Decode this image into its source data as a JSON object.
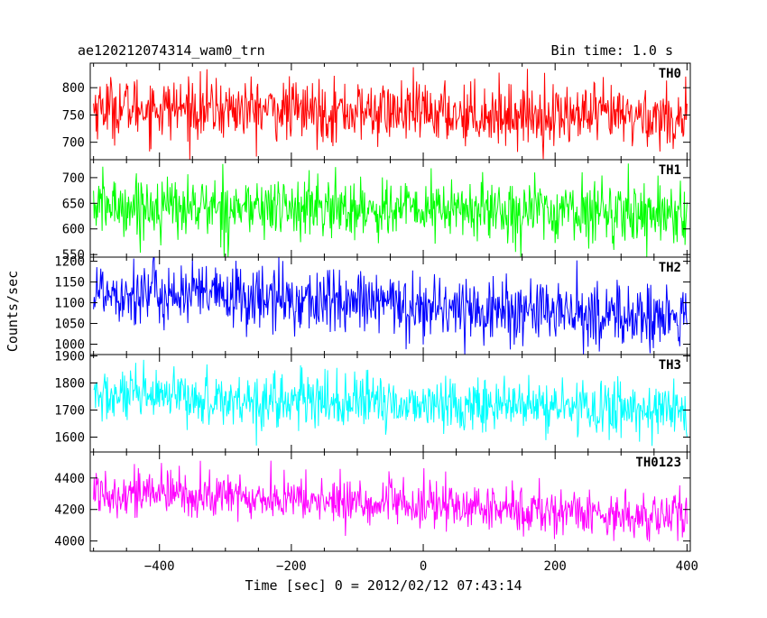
{
  "chart_data": {
    "type": "line",
    "title": "ae120212074314_wam0_trn",
    "bin_time_label": "Bin time: 1.0 s",
    "xlabel": "Time [sec] 0 = 2012/02/12 07:43:14",
    "ylabel": "Counts/sec",
    "xlim": [
      -505,
      405
    ],
    "xticks": [
      -400,
      -200,
      0,
      200,
      400
    ],
    "x_start": -500,
    "x_end": 400,
    "bin_seconds": 1.0,
    "panels": [
      {
        "name": "TH0",
        "color": "#ff0000",
        "ylim": [
          668,
          845
        ],
        "yticks": [
          700,
          750,
          800
        ],
        "start_mean": 765,
        "end_mean": 745,
        "noise": 28,
        "values_sample": {
          "x": [
            -500,
            -400,
            -200,
            0,
            200,
            400
          ],
          "y": [
            770,
            765,
            760,
            752,
            748,
            745
          ]
        }
      },
      {
        "name": "TH1",
        "color": "#00ff00",
        "ylim": [
          545,
          735
        ],
        "yticks": [
          550,
          600,
          650,
          700
        ],
        "start_mean": 645,
        "end_mean": 632,
        "noise": 30,
        "values_sample": {
          "x": [
            -500,
            -400,
            -200,
            0,
            200,
            400
          ],
          "y": [
            648,
            645,
            640,
            636,
            633,
            632
          ]
        }
      },
      {
        "name": "TH2",
        "color": "#0000ff",
        "ylim": [
          975,
          1210
        ],
        "yticks": [
          1000,
          1050,
          1100,
          1150,
          1200
        ],
        "start_mean": 1130,
        "end_mean": 1060,
        "noise": 40,
        "values_sample": {
          "x": [
            -500,
            -400,
            -200,
            0,
            200,
            400
          ],
          "y": [
            1135,
            1125,
            1105,
            1085,
            1070,
            1060
          ]
        }
      },
      {
        "name": "TH3",
        "color": "#00ffff",
        "ylim": [
          1545,
          1905
        ],
        "yticks": [
          1600,
          1700,
          1800,
          1900
        ],
        "start_mean": 1750,
        "end_mean": 1700,
        "noise": 50,
        "values_sample": {
          "x": [
            -500,
            -400,
            -200,
            0,
            200,
            400
          ],
          "y": [
            1755,
            1745,
            1725,
            1712,
            1705,
            1700
          ]
        }
      },
      {
        "name": "TH0123",
        "color": "#ff00ff",
        "ylim": [
          3935,
          4565
        ],
        "yticks": [
          4000,
          4200,
          4400
        ],
        "start_mean": 4320,
        "end_mean": 4150,
        "noise": 75,
        "values_sample": {
          "x": [
            -500,
            -400,
            -200,
            0,
            200,
            400
          ],
          "y": [
            4330,
            4300,
            4250,
            4200,
            4170,
            4150
          ]
        }
      }
    ]
  }
}
